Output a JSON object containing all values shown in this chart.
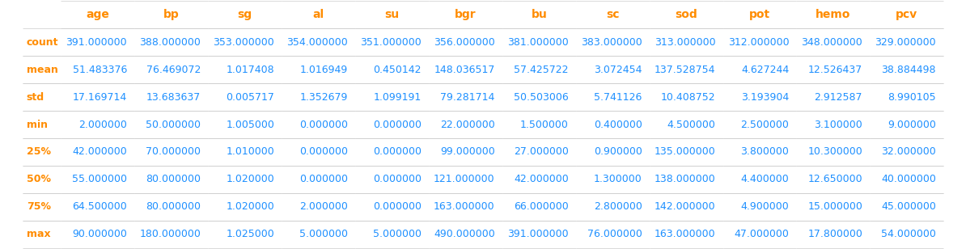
{
  "columns": [
    "",
    "age",
    "bp",
    "sg",
    "al",
    "su",
    "bgr",
    "bu",
    "sc",
    "sod",
    "pot",
    "hemo",
    "pcv"
  ],
  "rows": {
    "count": [
      391.0,
      388.0,
      353.0,
      354.0,
      351.0,
      356.0,
      381.0,
      383.0,
      313.0,
      312.0,
      348.0,
      329.0
    ],
    "mean": [
      51.483376,
      76.469072,
      1.017408,
      1.016949,
      0.450142,
      148.036517,
      57.425722,
      3.072454,
      137.528754,
      4.627244,
      12.526437,
      38.884498
    ],
    "std": [
      17.169714,
      13.683637,
      0.005717,
      1.352679,
      1.099191,
      79.281714,
      50.503006,
      5.741126,
      10.408752,
      3.193904,
      2.912587,
      8.990105
    ],
    "min": [
      2.0,
      50.0,
      1.005,
      0.0,
      0.0,
      22.0,
      1.5,
      0.4,
      4.5,
      2.5,
      3.1,
      9.0
    ],
    "25%": [
      42.0,
      70.0,
      1.01,
      0.0,
      0.0,
      99.0,
      27.0,
      0.9,
      135.0,
      3.8,
      10.3,
      32.0
    ],
    "50%": [
      55.0,
      80.0,
      1.02,
      0.0,
      0.0,
      121.0,
      42.0,
      1.3,
      138.0,
      4.4,
      12.65,
      40.0
    ],
    "75%": [
      64.5,
      80.0,
      1.02,
      2.0,
      0.0,
      163.0,
      66.0,
      2.8,
      142.0,
      4.9,
      15.0,
      45.0
    ],
    "max": [
      90.0,
      180.0,
      1.025,
      5.0,
      5.0,
      490.0,
      391.0,
      76.0,
      163.0,
      47.0,
      17.8,
      54.0
    ]
  },
  "row_order": [
    "count",
    "mean",
    "std",
    "min",
    "25%",
    "50%",
    "75%",
    "max"
  ],
  "header_color": "#ff8c00",
  "index_color": "#ff8c00",
  "value_color": "#1e90ff",
  "background_color": "#ffffff",
  "line_color": "#cccccc",
  "header_fontsize": 10,
  "cell_fontsize": 9,
  "figsize": [
    11.94,
    3.08
  ],
  "dpi": 100
}
